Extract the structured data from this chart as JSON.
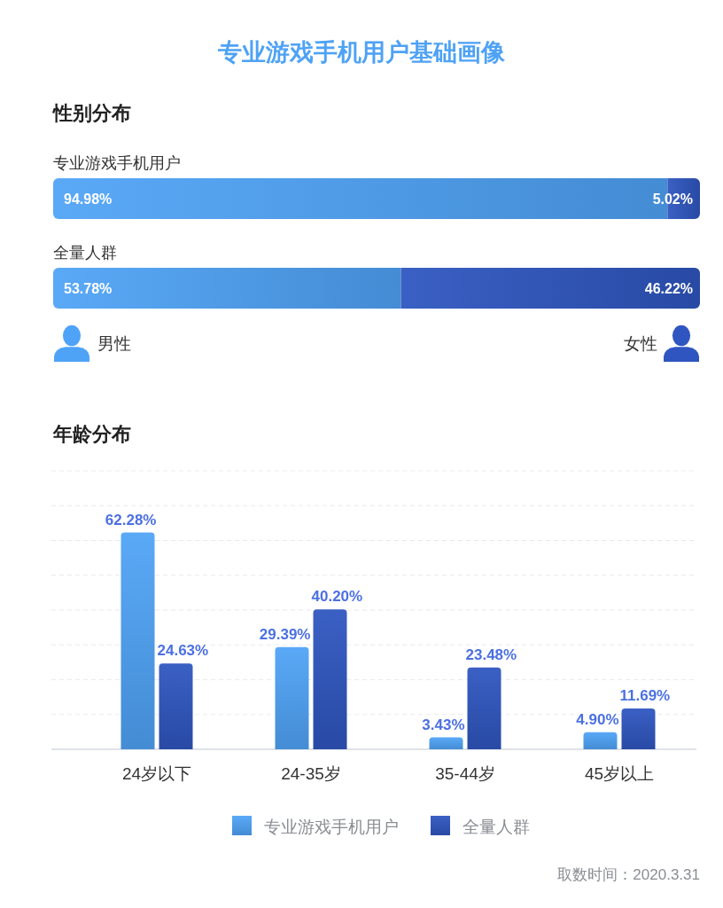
{
  "chart_data": [
    {
      "type": "bar",
      "title": "专业游戏手机用户基础画像",
      "subtitle": "性别分布",
      "orientation": "horizontal",
      "stacked": true,
      "categories": [
        "专业游戏手机用户",
        "全量人群"
      ],
      "series": [
        {
          "name": "男性",
          "color": "#4fa3f7",
          "values": [
            94.98,
            53.78
          ],
          "value_labels": [
            "94.98%",
            "53.78%"
          ]
        },
        {
          "name": "女性",
          "color": "#2f56c0",
          "values": [
            5.02,
            46.22
          ],
          "value_labels": [
            "5.02%",
            "46.22%"
          ]
        }
      ],
      "xlim": [
        0,
        100
      ],
      "legend": "bottom",
      "tick_labels": "y"
    },
    {
      "type": "bar",
      "title": "年龄分布",
      "categories": [
        "24岁以下",
        "24-35岁",
        "35-44岁",
        "45岁以上"
      ],
      "series": [
        {
          "name": "专业游戏手机用户",
          "color": "#4fa3f7",
          "values": [
            62.28,
            29.39,
            3.43,
            4.9
          ],
          "value_labels": [
            "62.28%",
            "29.39%",
            "3.43%",
            "4.90%"
          ]
        },
        {
          "name": "全量人群",
          "color": "#2f56c0",
          "values": [
            24.63,
            40.2,
            23.48,
            11.69
          ],
          "value_labels": [
            "24.63%",
            "40.20%",
            "23.48%",
            "11.69%"
          ]
        }
      ],
      "ylim": [
        0,
        80
      ],
      "yticks": [
        {
          "value": 0,
          "label": null
        },
        {
          "value": 10,
          "label": null
        },
        {
          "value": 20,
          "label": null
        },
        {
          "value": 30,
          "label": null
        },
        {
          "value": 40,
          "label": null
        },
        {
          "value": 50,
          "label": null
        },
        {
          "value": 60,
          "label": null
        },
        {
          "value": 70,
          "label": null
        },
        {
          "value": 80,
          "label": null
        }
      ],
      "grid": "y",
      "legend": "bottom",
      "tick_labels": "x",
      "annotations": [
        "取数时间：2020.3.31"
      ]
    }
  ]
}
